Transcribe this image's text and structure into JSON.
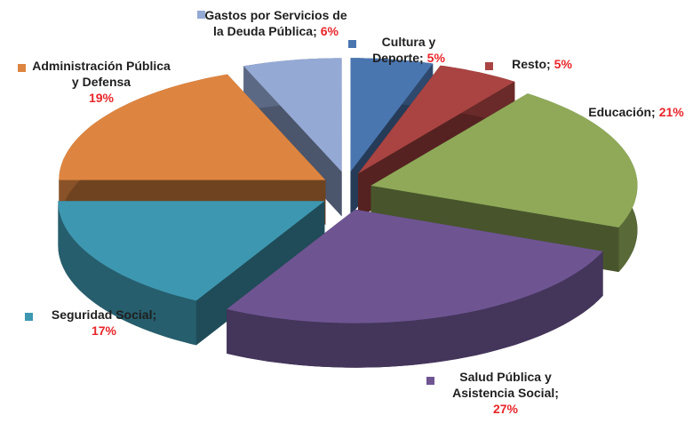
{
  "chart_data": {
    "type": "pie3d",
    "categories": [
      "Cultura y Deporte;",
      "Resto;",
      "Educación;",
      "Salud Pública y Asistencia Social;",
      "Seguridad Social;",
      "Administración Pública y Defensa",
      "Gastos por Servicios de la Deuda Pública;"
    ],
    "values": [
      5,
      5,
      21,
      27,
      17,
      19,
      6
    ],
    "value_labels": [
      "5%",
      "5%",
      "21%",
      "27%",
      "17%",
      "19%",
      "6%"
    ],
    "colors": [
      "#4a76b0",
      "#a94442",
      "#8fa958",
      "#6e5592",
      "#3e97b0",
      "#dd8540",
      "#95a9d5"
    ],
    "value_label_color": "#e8262a"
  }
}
